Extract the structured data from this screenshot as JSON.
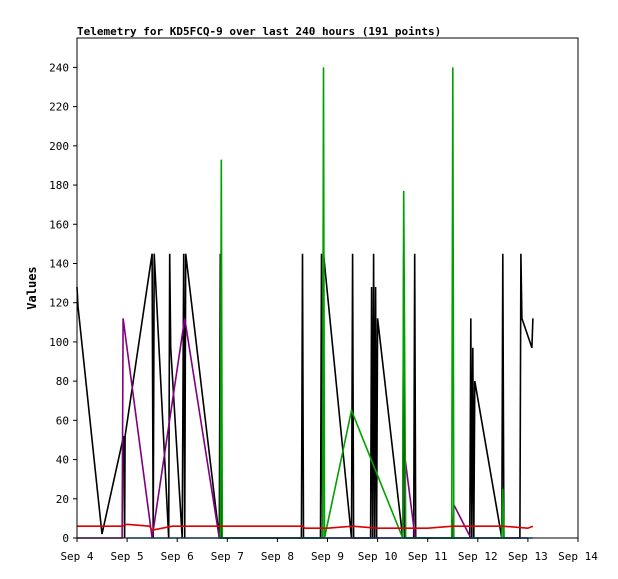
{
  "chart_data": {
    "type": "line",
    "title": "Telemetry for KD5FCQ-9 over last 240 hours (191 points)",
    "xlabel": "",
    "ylabel": "Values",
    "ylim": [
      0,
      255
    ],
    "y_ticks": [
      0,
      20,
      40,
      60,
      80,
      100,
      120,
      140,
      160,
      180,
      200,
      220,
      240
    ],
    "x_ticks": [
      {
        "x": 0,
        "label": "Sep 4"
      },
      {
        "x": 1,
        "label": "Sep 5"
      },
      {
        "x": 2,
        "label": "Sep 6"
      },
      {
        "x": 3,
        "label": "Sep 7"
      },
      {
        "x": 4,
        "label": "Sep 8"
      },
      {
        "x": 5,
        "label": "Sep 9"
      },
      {
        "x": 6,
        "label": "Sep 10"
      },
      {
        "x": 7,
        "label": "Sep 11"
      },
      {
        "x": 8,
        "label": "Sep 12"
      },
      {
        "x": 9,
        "label": "Sep 13"
      },
      {
        "x": 10,
        "label": "Sep 14"
      }
    ],
    "xlim": [
      0,
      10
    ],
    "grid": false,
    "legend": "none",
    "series": [
      {
        "color": "#000000",
        "points": [
          [
            0.0,
            128
          ],
          [
            0.02,
            118
          ],
          [
            0.5,
            2
          ],
          [
            0.93,
            52
          ],
          [
            0.95,
            0
          ],
          [
            0.96,
            52
          ],
          [
            1.5,
            145
          ],
          [
            1.52,
            0
          ],
          [
            1.54,
            145
          ],
          [
            1.83,
            0
          ],
          [
            1.85,
            145
          ],
          [
            1.87,
            97
          ],
          [
            2.1,
            0
          ],
          [
            2.13,
            145
          ],
          [
            2.15,
            0
          ],
          [
            2.17,
            145
          ],
          [
            2.84,
            0
          ],
          [
            2.86,
            145
          ],
          [
            2.88,
            0
          ],
          [
            4.48,
            0
          ],
          [
            4.5,
            145
          ],
          [
            4.52,
            0
          ],
          [
            4.86,
            0
          ],
          [
            4.88,
            145
          ],
          [
            4.9,
            0
          ],
          [
            4.92,
            145
          ],
          [
            5.48,
            0
          ],
          [
            5.5,
            145
          ],
          [
            5.52,
            0
          ],
          [
            5.86,
            0
          ],
          [
            5.88,
            128
          ],
          [
            5.9,
            0
          ],
          [
            5.92,
            145
          ],
          [
            5.94,
            0
          ],
          [
            5.96,
            128
          ],
          [
            5.98,
            0
          ],
          [
            6.0,
            112
          ],
          [
            6.5,
            0
          ],
          [
            6.52,
            145
          ],
          [
            6.54,
            0
          ],
          [
            6.72,
            0
          ],
          [
            6.74,
            145
          ],
          [
            6.76,
            0
          ],
          [
            7.0,
            0
          ],
          [
            7.84,
            0
          ],
          [
            7.86,
            112
          ],
          [
            7.88,
            0
          ],
          [
            7.9,
            97
          ],
          [
            7.92,
            0
          ],
          [
            7.94,
            80
          ],
          [
            8.48,
            0
          ],
          [
            8.5,
            145
          ],
          [
            8.52,
            0
          ],
          [
            8.84,
            0
          ],
          [
            8.86,
            145
          ],
          [
            8.88,
            112
          ],
          [
            9.08,
            97
          ],
          [
            9.1,
            112
          ]
        ]
      },
      {
        "color": "#800080",
        "points": [
          [
            0.0,
            0
          ],
          [
            0.9,
            0
          ],
          [
            0.92,
            112
          ],
          [
            1.5,
            0
          ],
          [
            2.15,
            112
          ],
          [
            2.84,
            0
          ],
          [
            6.5,
            0
          ],
          [
            6.55,
            40
          ],
          [
            6.75,
            0
          ],
          [
            7.5,
            0
          ],
          [
            7.52,
            17
          ],
          [
            7.86,
            0
          ],
          [
            9.0,
            0
          ]
        ]
      },
      {
        "color": "#00a000",
        "points": [
          [
            2.86,
            0
          ],
          [
            2.88,
            193
          ],
          [
            2.9,
            0
          ],
          [
            4.9,
            0
          ],
          [
            4.92,
            240
          ],
          [
            4.94,
            0
          ],
          [
            5.48,
            65
          ],
          [
            6.5,
            0
          ],
          [
            6.52,
            177
          ],
          [
            6.56,
            0
          ],
          [
            7.48,
            0
          ],
          [
            7.5,
            240
          ],
          [
            7.52,
            0
          ],
          [
            8.48,
            0
          ],
          [
            8.5,
            25
          ],
          [
            8.52,
            0
          ]
        ]
      },
      {
        "color": "#dd0000",
        "points": [
          [
            0.0,
            6
          ],
          [
            0.9,
            6
          ],
          [
            1.0,
            7
          ],
          [
            1.45,
            6
          ],
          [
            1.5,
            4
          ],
          [
            1.9,
            6
          ],
          [
            2.5,
            6
          ],
          [
            3.0,
            6
          ],
          [
            4.5,
            6
          ],
          [
            4.55,
            5
          ],
          [
            5.0,
            5
          ],
          [
            5.5,
            6
          ],
          [
            6.0,
            5
          ],
          [
            6.5,
            5
          ],
          [
            7.0,
            5
          ],
          [
            7.5,
            6
          ],
          [
            8.0,
            6
          ],
          [
            8.5,
            6
          ],
          [
            9.0,
            5
          ],
          [
            9.1,
            6
          ]
        ]
      },
      {
        "color": "#1e8ecf",
        "points": [
          [
            1.0,
            0
          ],
          [
            3.0,
            0
          ],
          [
            6.0,
            0
          ],
          [
            9.1,
            0
          ]
        ]
      }
    ]
  }
}
